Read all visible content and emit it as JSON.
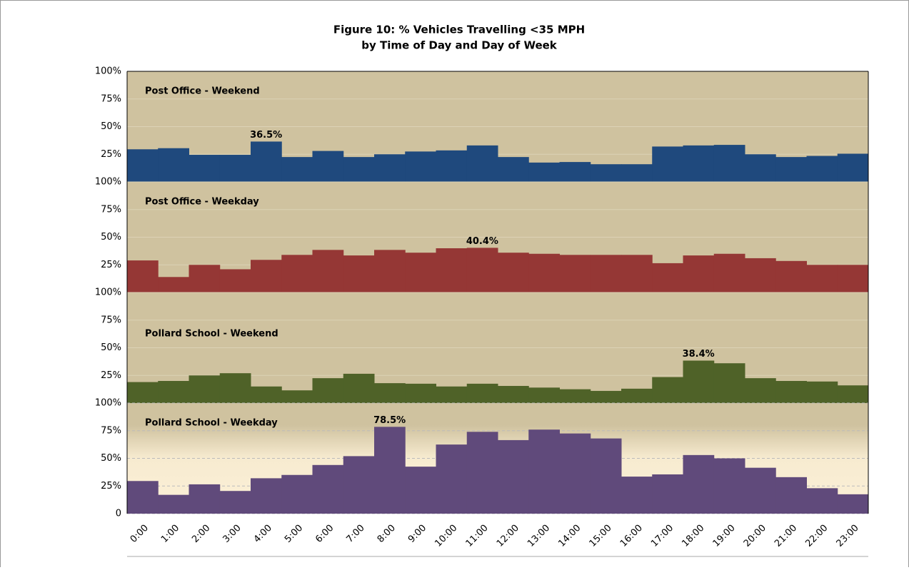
{
  "chart_data": {
    "type": "bar",
    "title": "Figure 10:  % Vehicles Travelling <35 MPH",
    "subtitle": "by Time of Day and Day of Week",
    "categories": [
      "0:00",
      "1:00",
      "2:00",
      "3:00",
      "4:00",
      "5:00",
      "6:00",
      "7:00",
      "8:00",
      "9:00",
      "10:00",
      "11:00",
      "12:00",
      "13:00",
      "14:00",
      "15:00",
      "16:00",
      "17:00",
      "18:00",
      "19:00",
      "20:00",
      "21:00",
      "22:00",
      "23:00"
    ],
    "ylim": [
      0,
      100
    ],
    "series": [
      {
        "name": "Post Office - Weekend",
        "color": "#1f497d",
        "values": [
          29.5,
          30.5,
          24.5,
          24.5,
          36.5,
          22.5,
          28,
          22.5,
          25,
          27.5,
          28.5,
          33,
          22.5,
          17.5,
          18,
          16,
          16,
          32,
          33,
          33.5,
          25,
          22.5,
          23.5,
          25.5
        ],
        "value_labels": [
          null,
          null,
          null,
          null,
          "36.5%",
          null,
          null,
          null,
          null,
          null,
          null,
          null,
          null,
          null,
          null,
          null,
          null,
          null,
          null,
          null,
          null,
          null,
          null,
          null
        ],
        "yticks": [
          {
            "value": 100,
            "label": "100%"
          },
          {
            "value": 75,
            "label": "75%"
          },
          {
            "value": 50,
            "label": "50%"
          },
          {
            "value": 25,
            "label": "25%"
          }
        ]
      },
      {
        "name": "Post Office - Weekday",
        "color": "#953735",
        "values": [
          29,
          14,
          25,
          21,
          29.5,
          34,
          38.5,
          33.5,
          38.5,
          36,
          40,
          40.4,
          36,
          35,
          34,
          34,
          34,
          26.5,
          33.5,
          35,
          31,
          28.5,
          25,
          25
        ],
        "value_labels": [
          null,
          null,
          null,
          null,
          null,
          null,
          null,
          null,
          null,
          null,
          null,
          "40.4%",
          null,
          null,
          null,
          null,
          null,
          null,
          null,
          null,
          null,
          null,
          null,
          null
        ],
        "yticks": [
          {
            "value": 100,
            "label": "100%"
          },
          {
            "value": 75,
            "label": "75%"
          },
          {
            "value": 50,
            "label": "50%"
          },
          {
            "value": 25,
            "label": "25%"
          }
        ]
      },
      {
        "name": "Pollard School - Weekend",
        "color": "#4f6228",
        "values": [
          19,
          20,
          25,
          27,
          15,
          11.5,
          22.5,
          26.5,
          18,
          17.5,
          15,
          17.5,
          15.5,
          14,
          12.5,
          11,
          13,
          23.5,
          38.4,
          36,
          22.5,
          20,
          19.5,
          16
        ],
        "value_labels": [
          null,
          null,
          null,
          null,
          null,
          null,
          null,
          null,
          null,
          null,
          null,
          null,
          null,
          null,
          null,
          null,
          null,
          null,
          "38.4%",
          null,
          null,
          null,
          null,
          null
        ],
        "yticks": [
          {
            "value": 100,
            "label": "100%"
          },
          {
            "value": 75,
            "label": "75%"
          },
          {
            "value": 50,
            "label": "50%"
          },
          {
            "value": 25,
            "label": "25%"
          }
        ]
      },
      {
        "name": "Pollard School - Weekday",
        "color": "#604a7b",
        "values": [
          29.5,
          17,
          26.5,
          20.5,
          32,
          35,
          44,
          52,
          78.5,
          42.5,
          62.5,
          74,
          66.5,
          76,
          72.5,
          68,
          33.5,
          35.5,
          53,
          50,
          41.5,
          33,
          23,
          17.5
        ],
        "value_labels": [
          null,
          null,
          null,
          null,
          null,
          null,
          null,
          null,
          "78.5%",
          null,
          null,
          null,
          null,
          null,
          null,
          null,
          null,
          null,
          null,
          null,
          null,
          null,
          null,
          null
        ],
        "yticks": [
          {
            "value": 100,
            "label": "100%"
          },
          {
            "value": 75,
            "label": "75%"
          },
          {
            "value": 50,
            "label": "50%"
          },
          {
            "value": 25,
            "label": "25%"
          },
          0
        ]
      }
    ]
  }
}
